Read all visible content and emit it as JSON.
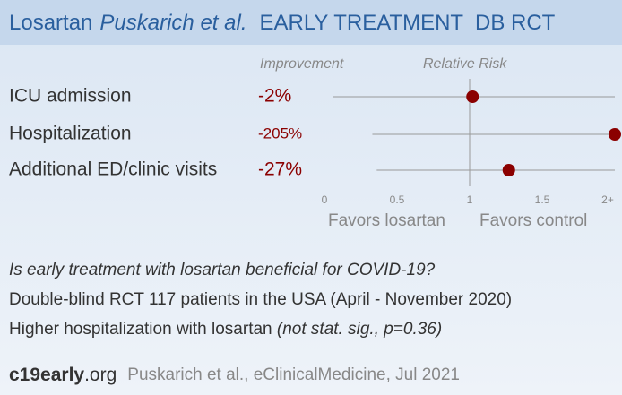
{
  "header": {
    "drug": "Losartan",
    "authors": "Puskarich et al.",
    "tags": "EARLY TREATMENT  DB RCT"
  },
  "chart_data": {
    "type": "forest",
    "col_improvement": "Improvement",
    "col_rr": "Relative Risk",
    "categories": [
      "ICU admission",
      "Hospitalization",
      "Additional ED/clinic visits"
    ],
    "improvement": [
      -2,
      -205,
      -27
    ],
    "value_labels": [
      "-2%",
      "-205%",
      "-27%"
    ],
    "values": [
      1.02,
      2.0,
      1.27
    ],
    "ci_low": [
      0.06,
      0.33,
      0.36
    ],
    "ci_high": [
      2.0,
      2.0,
      2.0
    ],
    "color": "#8b0000",
    "xlim": [
      0,
      2
    ],
    "xticks": [
      0,
      0.5,
      1,
      1.5,
      {
        "value": 2,
        "label": "2+"
      }
    ],
    "ref": 1,
    "favors_left": "Favors losartan",
    "favors_right": "Favors control"
  },
  "summary": {
    "question": "Is early treatment with losartan beneficial for COVID-19?",
    "design": "Double-blind RCT 117 patients in the USA (April - November 2020)",
    "result": "Higher hospitalization with losartan ",
    "result_note": "(not stat. sig., p=0.36)"
  },
  "footer": {
    "brand": "c19early",
    "tld": ".org",
    "citation": "Puskarich et al., eClinicalMedicine, Jul 2021"
  }
}
